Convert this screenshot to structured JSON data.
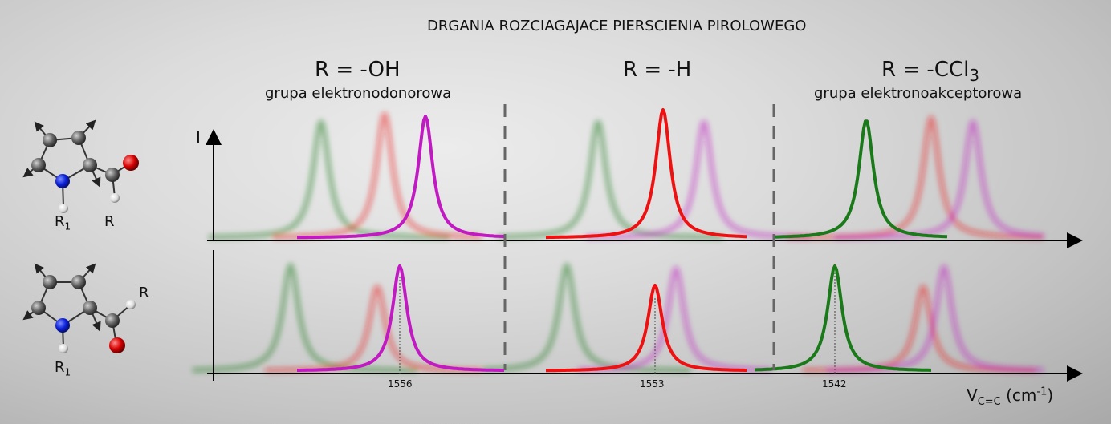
{
  "title": "DRGANIA ROZCIAGAJACE PIERSCIENIA PIROLOWEGO",
  "sections": [
    {
      "label_main": "R = -OH",
      "label_sub": "grupa elektronodonorowa"
    },
    {
      "label_main": "R = -H",
      "label_sub": ""
    },
    {
      "label_main": "R = -CCl",
      "label_subscript": "3",
      "label_sub": "grupa elektronoakceptorowa"
    }
  ],
  "axes": {
    "y_label": "I",
    "x_label_main": "V",
    "x_label_sub": "C=C",
    "x_label_unit_open": "(cm",
    "x_label_unit_sup": "-1",
    "x_label_unit_close": ")"
  },
  "molecules": {
    "top": {
      "label_r1": "R",
      "label_r1_sub": "1",
      "label_r": "R"
    },
    "bottom": {
      "label_r1": "R",
      "label_r1_sub": "1",
      "label_r": "R"
    }
  },
  "colors": {
    "green": "#1a7a1a",
    "red": "#ee1111",
    "purple": "#c21ac2"
  },
  "chart_data": {
    "type": "line",
    "panels": [
      {
        "name": "top",
        "peaks": [
          {
            "section": "OH",
            "series": "magenta",
            "highlighted": true,
            "height": 1.0
          },
          {
            "section": "H",
            "series": "red",
            "highlighted": true,
            "height": 1.05
          },
          {
            "section": "CCl3",
            "series": "green",
            "highlighted": true,
            "height": 0.98
          }
        ]
      },
      {
        "name": "bottom",
        "peaks": [
          {
            "section": "OH",
            "series": "magenta",
            "highlighted": true,
            "height": 1.0,
            "value_label": "1556"
          },
          {
            "section": "H",
            "series": "red",
            "highlighted": true,
            "height": 0.8,
            "value_label": "1553"
          },
          {
            "section": "CCl3",
            "series": "green",
            "highlighted": true,
            "height": 1.0,
            "value_label": "1542"
          }
        ]
      }
    ]
  }
}
